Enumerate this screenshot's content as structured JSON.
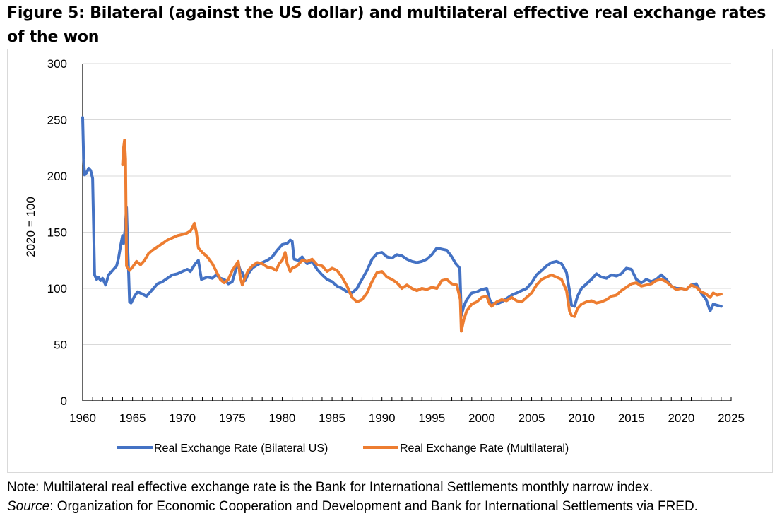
{
  "title": "Figure 5: Bilateral (against the US dollar) and multilateral effective real exchange rates of the won",
  "note": "Note: Multilateral real effective exchange rate is the Bank for International Settlements monthly narrow index.",
  "source_label": "Source",
  "source_text": ": Organization for Economic Cooperation and Development and Bank for International Settlements via FRED.",
  "chart_data": {
    "type": "line",
    "title": "",
    "xlabel": "",
    "ylabel": "2020 = 100",
    "xlim": [
      1960,
      2025
    ],
    "ylim": [
      0,
      300
    ],
    "x_ticks": [
      "1960",
      "1965",
      "1970",
      "1975",
      "1980",
      "1985",
      "1990",
      "1995",
      "2000",
      "2005",
      "2010",
      "2015",
      "2020",
      "2025"
    ],
    "y_ticks": [
      "0",
      "50",
      "100",
      "150",
      "200",
      "250",
      "300"
    ],
    "grid": "horizontal",
    "legend_position": "bottom",
    "series": [
      {
        "name": "Real Exchange Rate (Bilateral US)",
        "color": "#4472c4",
        "points": [
          [
            1960.0,
            252
          ],
          [
            1960.1,
            215
          ],
          [
            1960.2,
            201
          ],
          [
            1960.4,
            203
          ],
          [
            1960.6,
            207
          ],
          [
            1960.8,
            205
          ],
          [
            1961.0,
            198
          ],
          [
            1961.2,
            112
          ],
          [
            1961.4,
            108
          ],
          [
            1961.6,
            110
          ],
          [
            1961.8,
            107
          ],
          [
            1962.0,
            109
          ],
          [
            1962.3,
            103
          ],
          [
            1962.6,
            112
          ],
          [
            1963.0,
            116
          ],
          [
            1963.4,
            120
          ],
          [
            1963.6,
            127
          ],
          [
            1963.8,
            138
          ],
          [
            1964.0,
            147
          ],
          [
            1964.1,
            140
          ],
          [
            1964.25,
            152
          ],
          [
            1964.4,
            172
          ],
          [
            1964.5,
            140
          ],
          [
            1964.6,
            115
          ],
          [
            1964.7,
            88
          ],
          [
            1964.85,
            87
          ],
          [
            1965.2,
            93
          ],
          [
            1965.5,
            97
          ],
          [
            1966.0,
            95
          ],
          [
            1966.4,
            93
          ],
          [
            1967.0,
            99
          ],
          [
            1967.5,
            104
          ],
          [
            1968.0,
            106
          ],
          [
            1968.5,
            109
          ],
          [
            1969.0,
            112
          ],
          [
            1969.5,
            113
          ],
          [
            1970.0,
            115
          ],
          [
            1970.5,
            117
          ],
          [
            1970.8,
            115
          ],
          [
            1971.0,
            118
          ],
          [
            1971.3,
            122
          ],
          [
            1971.6,
            125
          ],
          [
            1971.9,
            108
          ],
          [
            1972.5,
            110
          ],
          [
            1973.0,
            109
          ],
          [
            1973.4,
            112
          ],
          [
            1973.8,
            109
          ],
          [
            1974.2,
            108
          ],
          [
            1974.6,
            104
          ],
          [
            1975.0,
            106
          ],
          [
            1975.4,
            118
          ],
          [
            1975.6,
            122
          ],
          [
            1975.8,
            116
          ],
          [
            1976.0,
            114
          ],
          [
            1976.3,
            107
          ],
          [
            1976.6,
            113
          ],
          [
            1977.0,
            118
          ],
          [
            1977.5,
            121
          ],
          [
            1978.0,
            123
          ],
          [
            1978.5,
            125
          ],
          [
            1979.0,
            128
          ],
          [
            1979.5,
            134
          ],
          [
            1980.0,
            139
          ],
          [
            1980.5,
            140
          ],
          [
            1980.8,
            143
          ],
          [
            1981.0,
            142
          ],
          [
            1981.2,
            126
          ],
          [
            1981.6,
            125
          ],
          [
            1982.0,
            128
          ],
          [
            1982.5,
            122
          ],
          [
            1983.0,
            124
          ],
          [
            1983.5,
            117
          ],
          [
            1984.0,
            112
          ],
          [
            1984.5,
            108
          ],
          [
            1985.0,
            106
          ],
          [
            1985.5,
            102
          ],
          [
            1986.0,
            100
          ],
          [
            1986.5,
            97
          ],
          [
            1987.0,
            96
          ],
          [
            1987.5,
            100
          ],
          [
            1988.0,
            108
          ],
          [
            1988.5,
            116
          ],
          [
            1989.0,
            126
          ],
          [
            1989.5,
            131
          ],
          [
            1990.0,
            132
          ],
          [
            1990.5,
            128
          ],
          [
            1991.0,
            127
          ],
          [
            1991.5,
            130
          ],
          [
            1992.0,
            129
          ],
          [
            1992.5,
            126
          ],
          [
            1993.0,
            124
          ],
          [
            1993.5,
            123
          ],
          [
            1994.0,
            124
          ],
          [
            1994.5,
            126
          ],
          [
            1995.0,
            130
          ],
          [
            1995.5,
            136
          ],
          [
            1996.0,
            135
          ],
          [
            1996.5,
            134
          ],
          [
            1997.0,
            128
          ],
          [
            1997.4,
            122
          ],
          [
            1997.8,
            118
          ],
          [
            1997.95,
            76
          ],
          [
            1998.2,
            84
          ],
          [
            1998.5,
            90
          ],
          [
            1999.0,
            96
          ],
          [
            1999.5,
            97
          ],
          [
            2000.0,
            99
          ],
          [
            2000.5,
            100
          ],
          [
            2000.8,
            90
          ],
          [
            2001.0,
            87
          ],
          [
            2001.5,
            86
          ],
          [
            2002.0,
            88
          ],
          [
            2002.5,
            91
          ],
          [
            2003.0,
            94
          ],
          [
            2003.5,
            96
          ],
          [
            2004.0,
            98
          ],
          [
            2004.5,
            100
          ],
          [
            2005.0,
            105
          ],
          [
            2005.5,
            112
          ],
          [
            2006.0,
            116
          ],
          [
            2006.5,
            120
          ],
          [
            2007.0,
            123
          ],
          [
            2007.5,
            124
          ],
          [
            2008.0,
            122
          ],
          [
            2008.5,
            114
          ],
          [
            2008.8,
            98
          ],
          [
            2009.0,
            85
          ],
          [
            2009.3,
            84
          ],
          [
            2009.6,
            93
          ],
          [
            2010.0,
            100
          ],
          [
            2010.5,
            104
          ],
          [
            2011.0,
            108
          ],
          [
            2011.5,
            113
          ],
          [
            2012.0,
            110
          ],
          [
            2012.5,
            109
          ],
          [
            2013.0,
            112
          ],
          [
            2013.5,
            111
          ],
          [
            2014.0,
            113
          ],
          [
            2014.5,
            118
          ],
          [
            2015.0,
            117
          ],
          [
            2015.5,
            108
          ],
          [
            2016.0,
            105
          ],
          [
            2016.5,
            108
          ],
          [
            2017.0,
            106
          ],
          [
            2017.5,
            108
          ],
          [
            2018.0,
            112
          ],
          [
            2018.5,
            108
          ],
          [
            2019.0,
            102
          ],
          [
            2019.5,
            100
          ],
          [
            2020.0,
            100
          ],
          [
            2020.5,
            99
          ],
          [
            2021.0,
            103
          ],
          [
            2021.5,
            104
          ],
          [
            2022.0,
            96
          ],
          [
            2022.5,
            90
          ],
          [
            2022.9,
            80
          ],
          [
            2023.2,
            86
          ],
          [
            2023.6,
            85
          ],
          [
            2024.0,
            84
          ]
        ]
      },
      {
        "name": "Real Exchange Rate (Multilateral)",
        "color": "#ed7d31",
        "points": [
          [
            1964.0,
            210
          ],
          [
            1964.1,
            225
          ],
          [
            1964.2,
            232
          ],
          [
            1964.3,
            215
          ],
          [
            1964.4,
            120
          ],
          [
            1964.7,
            116
          ],
          [
            1965.0,
            119
          ],
          [
            1965.4,
            124
          ],
          [
            1965.8,
            121
          ],
          [
            1966.2,
            125
          ],
          [
            1966.6,
            131
          ],
          [
            1967.0,
            134
          ],
          [
            1967.5,
            137
          ],
          [
            1968.0,
            140
          ],
          [
            1968.5,
            143
          ],
          [
            1969.0,
            145
          ],
          [
            1969.5,
            147
          ],
          [
            1970.0,
            148
          ],
          [
            1970.4,
            149
          ],
          [
            1970.8,
            151
          ],
          [
            1971.0,
            154
          ],
          [
            1971.2,
            158
          ],
          [
            1971.4,
            150
          ],
          [
            1971.6,
            136
          ],
          [
            1972.0,
            132
          ],
          [
            1972.5,
            128
          ],
          [
            1973.0,
            122
          ],
          [
            1973.4,
            115
          ],
          [
            1973.8,
            108
          ],
          [
            1974.2,
            105
          ],
          [
            1974.6,
            108
          ],
          [
            1975.0,
            116
          ],
          [
            1975.3,
            120
          ],
          [
            1975.6,
            124
          ],
          [
            1975.8,
            110
          ],
          [
            1976.0,
            103
          ],
          [
            1976.3,
            110
          ],
          [
            1976.6,
            116
          ],
          [
            1977.0,
            120
          ],
          [
            1977.5,
            123
          ],
          [
            1978.0,
            122
          ],
          [
            1978.5,
            119
          ],
          [
            1979.0,
            118
          ],
          [
            1979.4,
            116
          ],
          [
            1979.7,
            122
          ],
          [
            1980.0,
            125
          ],
          [
            1980.3,
            132
          ],
          [
            1980.5,
            122
          ],
          [
            1980.8,
            115
          ],
          [
            1981.0,
            118
          ],
          [
            1981.5,
            120
          ],
          [
            1982.0,
            125
          ],
          [
            1982.5,
            124
          ],
          [
            1983.0,
            126
          ],
          [
            1983.5,
            121
          ],
          [
            1984.0,
            120
          ],
          [
            1984.5,
            115
          ],
          [
            1985.0,
            118
          ],
          [
            1985.5,
            116
          ],
          [
            1986.0,
            110
          ],
          [
            1986.5,
            102
          ],
          [
            1987.0,
            92
          ],
          [
            1987.5,
            88
          ],
          [
            1988.0,
            90
          ],
          [
            1988.5,
            96
          ],
          [
            1989.0,
            106
          ],
          [
            1989.5,
            114
          ],
          [
            1990.0,
            115
          ],
          [
            1990.5,
            110
          ],
          [
            1991.0,
            108
          ],
          [
            1991.5,
            105
          ],
          [
            1992.0,
            100
          ],
          [
            1992.5,
            103
          ],
          [
            1993.0,
            100
          ],
          [
            1993.5,
            98
          ],
          [
            1994.0,
            100
          ],
          [
            1994.5,
            99
          ],
          [
            1995.0,
            101
          ],
          [
            1995.5,
            100
          ],
          [
            1996.0,
            107
          ],
          [
            1996.5,
            108
          ],
          [
            1997.0,
            104
          ],
          [
            1997.5,
            103
          ],
          [
            1997.85,
            90
          ],
          [
            1997.95,
            62
          ],
          [
            1998.2,
            72
          ],
          [
            1998.5,
            80
          ],
          [
            1999.0,
            86
          ],
          [
            1999.5,
            88
          ],
          [
            2000.0,
            92
          ],
          [
            2000.5,
            93
          ],
          [
            2000.8,
            86
          ],
          [
            2001.0,
            84
          ],
          [
            2001.5,
            88
          ],
          [
            2002.0,
            90
          ],
          [
            2002.5,
            89
          ],
          [
            2003.0,
            92
          ],
          [
            2003.5,
            89
          ],
          [
            2004.0,
            88
          ],
          [
            2004.5,
            92
          ],
          [
            2005.0,
            96
          ],
          [
            2005.5,
            103
          ],
          [
            2006.0,
            108
          ],
          [
            2006.5,
            110
          ],
          [
            2007.0,
            112
          ],
          [
            2007.5,
            110
          ],
          [
            2008.0,
            108
          ],
          [
            2008.5,
            98
          ],
          [
            2008.8,
            80
          ],
          [
            2009.0,
            76
          ],
          [
            2009.3,
            75
          ],
          [
            2009.6,
            82
          ],
          [
            2010.0,
            86
          ],
          [
            2010.5,
            88
          ],
          [
            2011.0,
            89
          ],
          [
            2011.5,
            87
          ],
          [
            2012.0,
            88
          ],
          [
            2012.5,
            90
          ],
          [
            2013.0,
            93
          ],
          [
            2013.5,
            94
          ],
          [
            2014.0,
            98
          ],
          [
            2014.5,
            101
          ],
          [
            2015.0,
            104
          ],
          [
            2015.5,
            105
          ],
          [
            2016.0,
            102
          ],
          [
            2016.5,
            103
          ],
          [
            2017.0,
            104
          ],
          [
            2017.5,
            107
          ],
          [
            2018.0,
            108
          ],
          [
            2018.5,
            106
          ],
          [
            2019.0,
            102
          ],
          [
            2019.5,
            99
          ],
          [
            2020.0,
            100
          ],
          [
            2020.5,
            99
          ],
          [
            2021.0,
            103
          ],
          [
            2021.5,
            101
          ],
          [
            2022.0,
            97
          ],
          [
            2022.5,
            95
          ],
          [
            2022.9,
            92
          ],
          [
            2023.2,
            96
          ],
          [
            2023.6,
            94
          ],
          [
            2024.0,
            95
          ]
        ]
      }
    ]
  }
}
